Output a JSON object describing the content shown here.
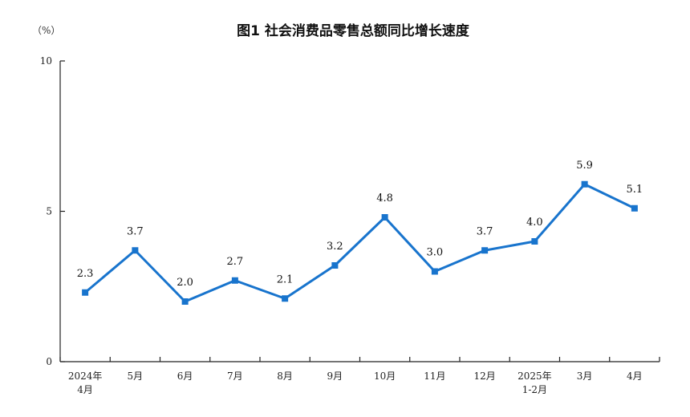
{
  "chart_data": {
    "type": "line",
    "title": "图1 社会消费品零售总额同比增长速度",
    "unit_label": "（%）",
    "xlabel": "",
    "ylabel": "",
    "ylim": [
      0,
      10
    ],
    "yticks": [
      "0",
      "5",
      "10"
    ],
    "grid": false,
    "legend": "none",
    "categories": [
      [
        "2024年",
        "4月"
      ],
      [
        "5月"
      ],
      [
        "6月"
      ],
      [
        "7月"
      ],
      [
        "8月"
      ],
      [
        "9月"
      ],
      [
        "10月"
      ],
      [
        "11月"
      ],
      [
        "12月"
      ],
      [
        "2025年",
        "1-2月"
      ],
      [
        "3月"
      ],
      [
        "4月"
      ]
    ],
    "series": [
      {
        "values": [
          2.3,
          3.7,
          2.0,
          2.7,
          2.1,
          3.2,
          4.8,
          3.0,
          3.7,
          4.0,
          5.9,
          5.1
        ],
        "labels": [
          "2.3",
          "3.7",
          "2.0",
          "2.7",
          "2.1",
          "3.2",
          "4.8",
          "3.0",
          "3.7",
          "4.0",
          "5.9",
          "5.1"
        ],
        "color": "#1874CD"
      }
    ],
    "axis_color": "#222222"
  }
}
